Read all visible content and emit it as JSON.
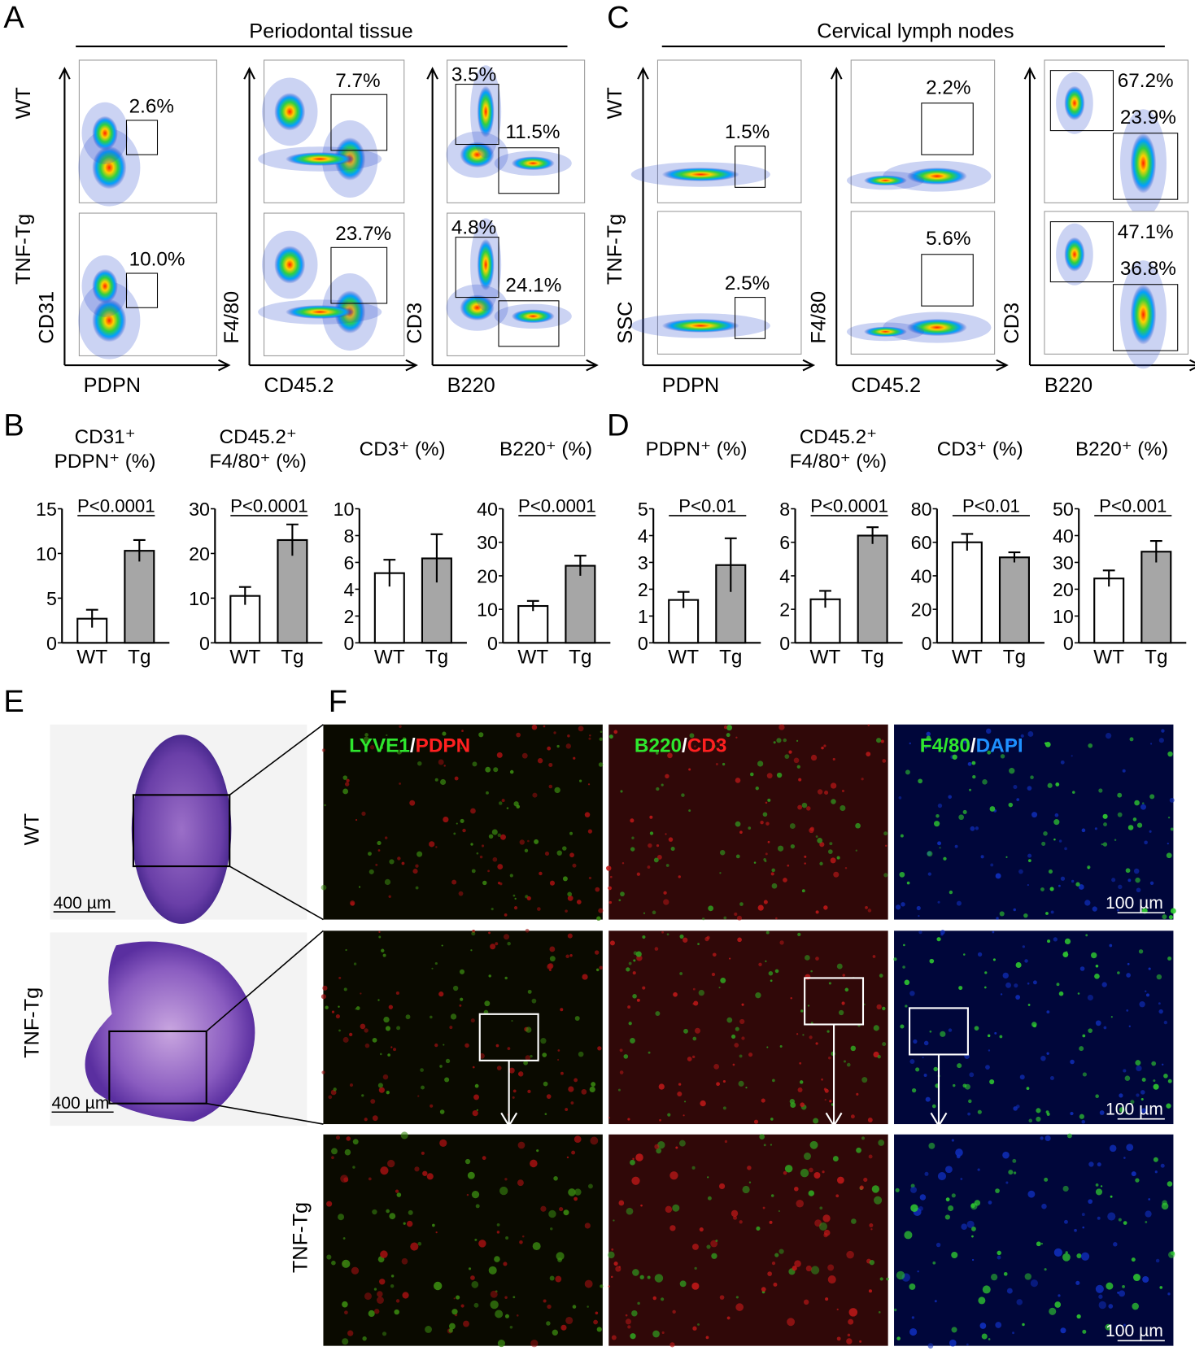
{
  "letters": [
    "A",
    "B",
    "C",
    "D",
    "E",
    "F"
  ],
  "flow_panels": [
    {
      "title": "Periodontal tissue",
      "row_labels": [
        "WT",
        "TNF-Tg"
      ],
      "plots": [
        {
          "x_label": "PDPN",
          "y_label": "CD31",
          "gates": [
            [
              "2.6%"
            ],
            [
              "10.0%"
            ]
          ]
        },
        {
          "x_label": "CD45.2",
          "y_label": "F4/80",
          "gates": [
            [
              "7.7%"
            ],
            [
              "23.7%"
            ]
          ]
        },
        {
          "x_label": "B220",
          "y_label": "CD3",
          "gates": [
            [
              "3.5%",
              "11.5%"
            ],
            [
              "4.8%",
              "24.1%"
            ]
          ]
        }
      ]
    },
    {
      "title": "Cervical lymph nodes",
      "row_labels": [
        "WT",
        "TNF-Tg"
      ],
      "plots": [
        {
          "x_label": "PDPN",
          "y_label": "SSC",
          "gates": [
            [
              "1.5%"
            ],
            [
              "2.5%"
            ]
          ]
        },
        {
          "x_label": "CD45.2",
          "y_label": "F4/80",
          "gates": [
            [
              "2.2%"
            ],
            [
              "5.6%"
            ]
          ]
        },
        {
          "x_label": "B220",
          "y_label": "CD3",
          "gates": [
            [
              "67.2%",
              "23.9%"
            ],
            [
              "47.1%",
              "36.8%"
            ]
          ]
        }
      ]
    }
  ],
  "chart_data": [
    {
      "type": "bar",
      "title": [
        "CD31⁺",
        "PDPN⁺ (%)"
      ],
      "categories": [
        "WT",
        "Tg"
      ],
      "values": [
        2.7,
        10.3
      ],
      "errors": [
        1,
        1.2
      ],
      "colors": [
        "#ffffff",
        "#a6a6a6"
      ],
      "ylim": [
        0,
        15
      ],
      "yticks": [
        0,
        5,
        10,
        15
      ],
      "annotation": "P<0.0001"
    },
    {
      "type": "bar",
      "title": [
        "CD45.2⁺",
        "F4/80⁺ (%)"
      ],
      "categories": [
        "WT",
        "Tg"
      ],
      "values": [
        10.5,
        23
      ],
      "errors": [
        2,
        3.5
      ],
      "colors": [
        "#ffffff",
        "#a6a6a6"
      ],
      "ylim": [
        0,
        30
      ],
      "yticks": [
        0,
        10,
        20,
        30
      ],
      "annotation": "P<0.0001"
    },
    {
      "type": "bar",
      "title": [
        "CD3⁺ (%)"
      ],
      "categories": [
        "WT",
        "Tg"
      ],
      "values": [
        5.2,
        6.3
      ],
      "errors": [
        1,
        1.8
      ],
      "colors": [
        "#ffffff",
        "#a6a6a6"
      ],
      "ylim": [
        0,
        10
      ],
      "yticks": [
        0,
        2,
        4,
        6,
        8,
        10
      ]
    },
    {
      "type": "bar",
      "title": [
        "B220⁺ (%)"
      ],
      "categories": [
        "WT",
        "Tg"
      ],
      "values": [
        11,
        23
      ],
      "errors": [
        1.5,
        3
      ],
      "colors": [
        "#ffffff",
        "#a6a6a6"
      ],
      "ylim": [
        0,
        40
      ],
      "yticks": [
        0,
        10,
        20,
        30,
        40
      ],
      "annotation": "P<0.0001"
    },
    {
      "type": "bar",
      "title": [
        "PDPN⁺ (%)"
      ],
      "categories": [
        "WT",
        "Tg"
      ],
      "values": [
        1.6,
        2.9
      ],
      "errors": [
        0.3,
        1
      ],
      "colors": [
        "#ffffff",
        "#a6a6a6"
      ],
      "ylim": [
        0,
        5
      ],
      "yticks": [
        0,
        1,
        2,
        3,
        4,
        5
      ],
      "annotation": "P<0.01"
    },
    {
      "type": "bar",
      "title": [
        "CD45.2⁺",
        "F4/80⁺ (%)"
      ],
      "categories": [
        "WT",
        "Tg"
      ],
      "values": [
        2.6,
        6.4
      ],
      "errors": [
        0.5,
        0.5
      ],
      "colors": [
        "#ffffff",
        "#a6a6a6"
      ],
      "ylim": [
        0,
        8
      ],
      "yticks": [
        0,
        2,
        4,
        6,
        8
      ],
      "annotation": "P<0.0001"
    },
    {
      "type": "bar",
      "title": [
        "CD3⁺ (%)"
      ],
      "categories": [
        "WT",
        "Tg"
      ],
      "values": [
        60,
        51
      ],
      "errors": [
        5,
        3
      ],
      "colors": [
        "#ffffff",
        "#a6a6a6"
      ],
      "ylim": [
        0,
        80
      ],
      "yticks": [
        0,
        20,
        40,
        60,
        80
      ],
      "annotation": "P<0.01"
    },
    {
      "type": "bar",
      "title": [
        "B220⁺ (%)"
      ],
      "categories": [
        "WT",
        "Tg"
      ],
      "values": [
        24,
        34
      ],
      "errors": [
        3,
        4
      ],
      "colors": [
        "#ffffff",
        "#a6a6a6"
      ],
      "ylim": [
        0,
        50
      ],
      "yticks": [
        0,
        10,
        20,
        30,
        40,
        50
      ],
      "annotation": "P<0.001"
    }
  ],
  "histology": {
    "row_labels": [
      "WT",
      "TNF-Tg"
    ],
    "scale_bars": [
      "400 µm",
      "400 µm"
    ]
  },
  "immunofluorescence": {
    "stains": [
      [
        {
          "text": "LYVE1",
          "color": "#2ee62e"
        },
        {
          "text": "/",
          "color": "#ffffff"
        },
        {
          "text": "PDPN",
          "color": "#ff2020"
        }
      ],
      [
        {
          "text": "B220",
          "color": "#2ee62e"
        },
        {
          "text": "/",
          "color": "#ffffff"
        },
        {
          "text": "CD3",
          "color": "#ff2020"
        }
      ],
      [
        {
          "text": "F4/80",
          "color": "#2ee62e"
        },
        {
          "text": "/",
          "color": "#ffffff"
        },
        {
          "text": "DAPI",
          "color": "#1e90ff"
        }
      ]
    ],
    "row_label": "TNF-Tg",
    "scale_bars": [
      "100 µm",
      "100 µm",
      "100 µm"
    ]
  }
}
